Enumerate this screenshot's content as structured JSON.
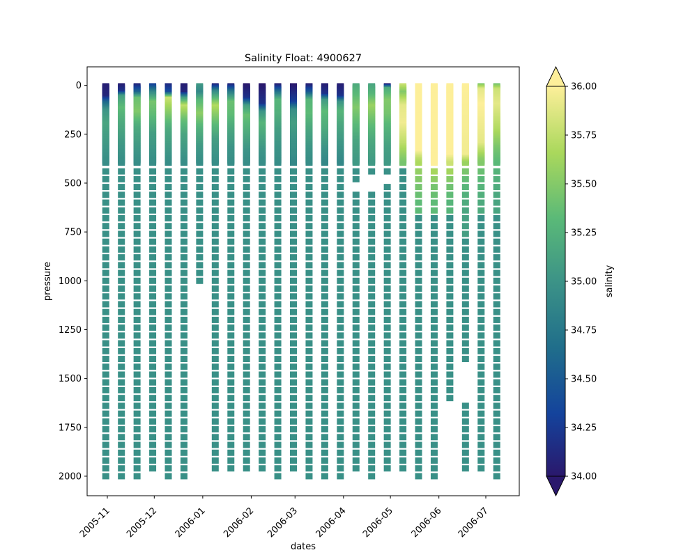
{
  "chart_data": {
    "type": "scatter",
    "title": "Salinity Float: 4900627",
    "xlabel": "dates",
    "ylabel": "pressure",
    "x_tick_labels": [
      "2005-11",
      "2005-12",
      "2006-01",
      "2006-02",
      "2006-03",
      "2006-04",
      "2006-05",
      "2006-06",
      "2006-07"
    ],
    "y_tick_labels": [
      "0",
      "250",
      "500",
      "750",
      "1000",
      "1250",
      "1500",
      "1750",
      "2000"
    ],
    "y_ticks": [
      0,
      250,
      500,
      750,
      1000,
      1250,
      1500,
      1750,
      2000
    ],
    "ylim": [
      2100,
      -95
    ],
    "y_inverted": true,
    "xlim_days_note": null,
    "grid": false,
    "marker": "square",
    "colorbar": {
      "label": "salinity",
      "cmap": "haline",
      "vmin": 34.0,
      "vmax": 36.0,
      "extend": "both",
      "tick_labels": [
        "34.00",
        "34.25",
        "34.50",
        "34.75",
        "35.00",
        "35.25",
        "35.50",
        "35.75",
        "36.00"
      ],
      "ticks": [
        34.0,
        34.25,
        34.5,
        34.75,
        35.0,
        35.25,
        35.5,
        35.75,
        36.0
      ],
      "colors": [
        "#2a186c",
        "#14439c",
        "#206e8b",
        "#3c9387",
        "#5ab978",
        "#aad85c",
        "#fdef9a"
      ]
    },
    "profiles": [
      {
        "date": "2005-10-31",
        "max_pressure": 2000,
        "gaps": [],
        "surface": [
          [
            0,
            34.05
          ],
          [
            60,
            34.1
          ],
          [
            90,
            34.6
          ],
          [
            130,
            35.0
          ],
          [
            200,
            35.15
          ],
          [
            300,
            35.05
          ],
          [
            400,
            34.95
          ]
        ]
      },
      {
        "date": "2005-11-10",
        "max_pressure": 2000,
        "gaps": [],
        "surface": [
          [
            0,
            34.05
          ],
          [
            35,
            34.2
          ],
          [
            60,
            35.1
          ],
          [
            120,
            35.35
          ],
          [
            200,
            35.2
          ],
          [
            300,
            35.05
          ],
          [
            400,
            34.95
          ]
        ]
      },
      {
        "date": "2005-11-20",
        "max_pressure": 2000,
        "gaps": [],
        "surface": [
          [
            0,
            34.1
          ],
          [
            40,
            34.6
          ],
          [
            70,
            35.4
          ],
          [
            140,
            35.5
          ],
          [
            220,
            35.2
          ],
          [
            320,
            35.05
          ],
          [
            400,
            34.95
          ]
        ]
      },
      {
        "date": "2005-11-30",
        "max_pressure": 1960,
        "gaps": [],
        "surface": [
          [
            0,
            34.3
          ],
          [
            40,
            34.9
          ],
          [
            90,
            35.45
          ],
          [
            160,
            35.35
          ],
          [
            250,
            35.1
          ],
          [
            350,
            35.0
          ],
          [
            400,
            34.95
          ]
        ]
      },
      {
        "date": "2005-12-10",
        "max_pressure": 2000,
        "gaps": [],
        "surface": [
          [
            0,
            34.15
          ],
          [
            40,
            34.4
          ],
          [
            70,
            35.8
          ],
          [
            150,
            35.5
          ],
          [
            230,
            35.2
          ],
          [
            330,
            35.05
          ],
          [
            400,
            34.95
          ]
        ]
      },
      {
        "date": "2005-12-20",
        "max_pressure": 2000,
        "gaps": [],
        "surface": [
          [
            0,
            34.05
          ],
          [
            40,
            34.1
          ],
          [
            70,
            35.1
          ],
          [
            110,
            35.75
          ],
          [
            180,
            35.4
          ],
          [
            260,
            35.15
          ],
          [
            400,
            34.95
          ]
        ]
      },
      {
        "date": "2005-12-30",
        "max_pressure": 1000,
        "gaps": [],
        "surface": [
          [
            0,
            35.05
          ],
          [
            40,
            34.9
          ],
          [
            80,
            35.3
          ],
          [
            150,
            35.55
          ],
          [
            230,
            35.25
          ],
          [
            320,
            35.05
          ],
          [
            400,
            34.95
          ]
        ]
      },
      {
        "date": "2006-01-09",
        "max_pressure": 1960,
        "gaps": [],
        "surface": [
          [
            0,
            34.1
          ],
          [
            35,
            34.9
          ],
          [
            70,
            35.3
          ],
          [
            110,
            35.7
          ],
          [
            190,
            35.4
          ],
          [
            280,
            35.1
          ],
          [
            400,
            34.95
          ]
        ]
      },
      {
        "date": "2006-01-19",
        "max_pressure": 1960,
        "gaps": [],
        "surface": [
          [
            0,
            34.1
          ],
          [
            40,
            34.8
          ],
          [
            90,
            35.4
          ],
          [
            160,
            35.35
          ],
          [
            240,
            35.15
          ],
          [
            330,
            35.0
          ],
          [
            400,
            34.95
          ]
        ]
      },
      {
        "date": "2006-01-29",
        "max_pressure": 1960,
        "gaps": [],
        "surface": [
          [
            0,
            34.0
          ],
          [
            70,
            34.2
          ],
          [
            110,
            35.1
          ],
          [
            160,
            35.4
          ],
          [
            250,
            35.2
          ],
          [
            340,
            35.0
          ],
          [
            400,
            34.95
          ]
        ]
      },
      {
        "date": "2006-02-08",
        "max_pressure": 1960,
        "gaps": [],
        "surface": [
          [
            0,
            34.0
          ],
          [
            100,
            34.2
          ],
          [
            140,
            35.0
          ],
          [
            200,
            35.3
          ],
          [
            270,
            35.15
          ],
          [
            350,
            35.0
          ],
          [
            400,
            34.95
          ]
        ]
      },
      {
        "date": "2006-02-18",
        "max_pressure": 2000,
        "gaps": [],
        "surface": [
          [
            0,
            34.05
          ],
          [
            40,
            34.7
          ],
          [
            80,
            35.3
          ],
          [
            150,
            35.25
          ],
          [
            230,
            35.1
          ],
          [
            330,
            35.0
          ],
          [
            400,
            34.95
          ]
        ]
      },
      {
        "date": "2006-02-28",
        "max_pressure": 1960,
        "gaps": [],
        "surface": [
          [
            0,
            34.0
          ],
          [
            90,
            34.3
          ],
          [
            130,
            34.95
          ],
          [
            200,
            35.1
          ],
          [
            280,
            35.0
          ],
          [
            360,
            34.95
          ],
          [
            400,
            34.9
          ]
        ]
      },
      {
        "date": "2006-03-10",
        "max_pressure": 2000,
        "gaps": [],
        "surface": [
          [
            0,
            34.05
          ],
          [
            40,
            34.5
          ],
          [
            80,
            35.3
          ],
          [
            150,
            35.35
          ],
          [
            240,
            35.15
          ],
          [
            340,
            35.0
          ],
          [
            400,
            34.95
          ]
        ]
      },
      {
        "date": "2006-03-20",
        "max_pressure": 2000,
        "gaps": [],
        "surface": [
          [
            0,
            34.05
          ],
          [
            50,
            34.2
          ],
          [
            80,
            35.05
          ],
          [
            140,
            35.35
          ],
          [
            230,
            35.2
          ],
          [
            330,
            35.0
          ],
          [
            400,
            34.9
          ]
        ]
      },
      {
        "date": "2006-03-30",
        "max_pressure": 2000,
        "gaps": [],
        "surface": [
          [
            0,
            34.05
          ],
          [
            60,
            34.2
          ],
          [
            90,
            35.0
          ],
          [
            140,
            35.3
          ],
          [
            220,
            35.15
          ],
          [
            320,
            35.0
          ],
          [
            400,
            34.9
          ]
        ]
      },
      {
        "date": "2006-04-09",
        "max_pressure": 1960,
        "gaps": [
          [
            480,
            560
          ]
        ],
        "surface": [
          [
            0,
            35.2
          ],
          [
            60,
            35.35
          ],
          [
            120,
            35.5
          ],
          [
            200,
            35.35
          ],
          [
            290,
            35.15
          ],
          [
            400,
            35.05
          ]
        ]
      },
      {
        "date": "2006-04-19",
        "max_pressure": 2000,
        "gaps": [
          [
            440,
            560
          ]
        ],
        "surface": [
          [
            0,
            35.15
          ],
          [
            50,
            35.3
          ],
          [
            110,
            35.6
          ],
          [
            190,
            35.4
          ],
          [
            280,
            35.2
          ],
          [
            400,
            35.05
          ]
        ]
      },
      {
        "date": "2006-04-29",
        "max_pressure": 1960,
        "gaps": [
          [
            440,
            520
          ]
        ],
        "surface": [
          [
            0,
            34.05
          ],
          [
            20,
            35.2
          ],
          [
            80,
            35.5
          ],
          [
            150,
            35.45
          ],
          [
            240,
            35.25
          ],
          [
            330,
            35.1
          ],
          [
            400,
            35.05
          ]
        ]
      },
      {
        "date": "2006-05-09",
        "max_pressure": 1960,
        "gaps": [],
        "surface": [
          [
            0,
            35.8
          ],
          [
            40,
            35.5
          ],
          [
            80,
            35.75
          ],
          [
            110,
            35.9
          ],
          [
            200,
            35.95
          ],
          [
            300,
            35.75
          ],
          [
            400,
            35.45
          ]
        ]
      },
      {
        "date": "2006-05-19",
        "max_pressure": 2000,
        "gaps": [],
        "surface": [
          [
            0,
            36.0
          ],
          [
            340,
            36.0
          ],
          [
            380,
            35.75
          ],
          [
            420,
            35.6
          ],
          [
            520,
            35.45
          ],
          [
            600,
            35.35
          ]
        ]
      },
      {
        "date": "2006-05-29",
        "max_pressure": 2000,
        "gaps": [],
        "surface": [
          [
            0,
            36.0
          ],
          [
            400,
            36.0
          ],
          [
            440,
            35.65
          ],
          [
            520,
            35.45
          ],
          [
            600,
            35.35
          ]
        ]
      },
      {
        "date": "2006-06-08",
        "max_pressure": 1600,
        "gaps": [],
        "surface": [
          [
            0,
            36.0
          ],
          [
            360,
            36.0
          ],
          [
            420,
            35.7
          ],
          [
            500,
            35.45
          ],
          [
            600,
            35.3
          ]
        ]
      },
      {
        "date": "2006-06-18",
        "max_pressure": 1960,
        "gaps": [
          [
            1430,
            1640
          ]
        ],
        "surface": [
          [
            0,
            36.0
          ],
          [
            360,
            35.95
          ],
          [
            400,
            35.6
          ],
          [
            460,
            35.4
          ],
          [
            560,
            35.25
          ],
          [
            700,
            35.1
          ]
        ]
      },
      {
        "date": "2006-06-28",
        "max_pressure": 1960,
        "gaps": [],
        "surface": [
          [
            0,
            35.5
          ],
          [
            25,
            35.9
          ],
          [
            100,
            36.0
          ],
          [
            300,
            35.9
          ],
          [
            380,
            35.55
          ],
          [
            460,
            35.35
          ],
          [
            600,
            35.2
          ]
        ]
      },
      {
        "date": "2006-07-08",
        "max_pressure": 2000,
        "gaps": [],
        "surface": [
          [
            0,
            35.45
          ],
          [
            25,
            35.8
          ],
          [
            100,
            35.9
          ],
          [
            230,
            35.7
          ],
          [
            330,
            35.45
          ],
          [
            420,
            35.3
          ],
          [
            600,
            35.15
          ]
        ]
      }
    ]
  }
}
